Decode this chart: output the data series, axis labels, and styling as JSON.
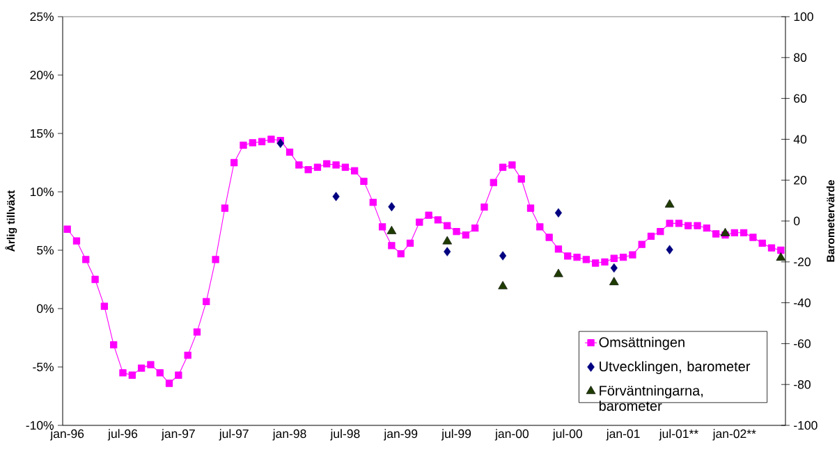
{
  "chart_data": {
    "type": "line",
    "categories": [
      "jan-96",
      null,
      null,
      null,
      null,
      null,
      "jul-96",
      null,
      null,
      null,
      null,
      null,
      "jan-97",
      null,
      null,
      null,
      null,
      null,
      "jul-97",
      null,
      null,
      null,
      null,
      null,
      "jan-98",
      null,
      null,
      null,
      null,
      null,
      "jul-98",
      null,
      null,
      null,
      null,
      null,
      "jan-99",
      null,
      null,
      null,
      null,
      null,
      "jul-99",
      null,
      null,
      null,
      null,
      null,
      "jan-00",
      null,
      null,
      null,
      null,
      null,
      "jul-00",
      null,
      null,
      null,
      null,
      null,
      "jan-01",
      null,
      null,
      null,
      null,
      null,
      "jul-01**",
      null,
      null,
      null,
      null,
      null,
      "jan-02**",
      null,
      null,
      null,
      null,
      null
    ],
    "series": [
      {
        "name": "Omsättningen",
        "color": "#ff00ff",
        "marker": "square",
        "values": [
          6.8,
          5.8,
          4.2,
          2.5,
          0.2,
          -3.1,
          -5.5,
          -5.7,
          -5.1,
          -4.8,
          -5.5,
          -6.4,
          -5.7,
          -4.0,
          -2.0,
          0.6,
          4.2,
          8.6,
          12.5,
          14.0,
          14.2,
          14.3,
          14.5,
          14.4,
          13.4,
          12.3,
          11.9,
          12.1,
          12.4,
          12.3,
          12.1,
          11.8,
          10.9,
          9.1,
          7.0,
          5.4,
          4.7,
          5.6,
          7.4,
          8.0,
          7.6,
          7.1,
          6.6,
          6.3,
          6.9,
          8.7,
          10.8,
          12.1,
          12.3,
          11.1,
          8.6,
          7.0,
          6.1,
          5.1,
          4.5,
          4.4,
          4.2,
          3.9,
          4.0,
          4.3,
          4.4,
          4.6,
          5.5,
          6.2,
          6.6,
          7.3,
          7.3,
          7.1,
          7.1,
          6.9,
          6.4,
          6.3,
          6.5,
          6.5,
          6.1,
          5.6,
          5.2,
          5.0
        ]
      },
      {
        "name": "Utvecklingen, barometer",
        "color": "#000080",
        "type": "scatter",
        "marker": "diamond",
        "axis": "y2",
        "values": [
          null,
          null,
          null,
          null,
          null,
          null,
          null,
          null,
          null,
          null,
          null,
          null,
          null,
          null,
          null,
          null,
          null,
          null,
          null,
          null,
          null,
          null,
          null,
          38,
          null,
          null,
          null,
          null,
          null,
          12,
          null,
          null,
          null,
          null,
          null,
          7,
          null,
          null,
          null,
          null,
          null,
          -15,
          null,
          null,
          null,
          null,
          null,
          -17,
          null,
          null,
          null,
          null,
          null,
          4,
          null,
          null,
          null,
          null,
          null,
          -23,
          null,
          null,
          null,
          null,
          null,
          -14,
          null,
          null,
          null,
          null,
          null,
          null,
          null,
          null,
          null,
          null,
          null,
          null
        ]
      },
      {
        "name": "Förväntningarna, barometer",
        "color": "#1f3c00",
        "type": "scatter",
        "marker": "triangle",
        "axis": "y2",
        "values": [
          null,
          null,
          null,
          null,
          null,
          null,
          null,
          null,
          null,
          null,
          null,
          null,
          null,
          null,
          null,
          null,
          null,
          null,
          null,
          null,
          null,
          null,
          null,
          null,
          null,
          null,
          null,
          null,
          null,
          null,
          null,
          null,
          null,
          null,
          null,
          -5,
          null,
          null,
          null,
          null,
          null,
          -10,
          null,
          null,
          null,
          null,
          null,
          -32,
          null,
          null,
          null,
          null,
          null,
          -26,
          null,
          null,
          null,
          null,
          null,
          -30,
          null,
          null,
          null,
          null,
          null,
          8,
          null,
          null,
          null,
          null,
          null,
          -6,
          null,
          null,
          null,
          null,
          null,
          -18
        ]
      }
    ],
    "ylabel": "Årlig tillväxt",
    "y2label": "Barometervärde",
    "ylim": [
      -10,
      25
    ],
    "yticks": [
      {
        "value": -10,
        "label": "-10%"
      },
      {
        "value": -5,
        "label": "-5%"
      },
      {
        "value": 0,
        "label": "0%"
      },
      {
        "value": 5,
        "label": "5%"
      },
      {
        "value": 10,
        "label": "10%"
      },
      {
        "value": 15,
        "label": "15%"
      },
      {
        "value": 20,
        "label": "20%"
      },
      {
        "value": 25,
        "label": "25%"
      }
    ],
    "y2lim": [
      -100,
      100
    ],
    "y2ticks": [
      -100,
      -80,
      -60,
      -40,
      -20,
      0,
      20,
      40,
      60,
      80,
      100
    ],
    "legend": "bottom right"
  }
}
